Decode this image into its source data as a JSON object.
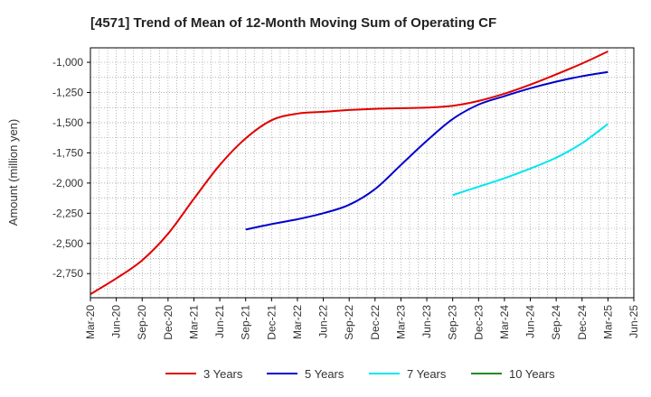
{
  "chart_data": {
    "type": "line",
    "title": "[4571]  Trend of Mean of 12-Month Moving Sum of Operating CF",
    "xlabel": "",
    "ylabel": "Amount (million yen)",
    "ylim": [
      -2950,
      -880
    ],
    "yticks": [
      -1000,
      -1250,
      -1500,
      -1750,
      -2000,
      -2250,
      -2500,
      -2750
    ],
    "ytick_labels": [
      "-1,000",
      "-1,250",
      "-1,500",
      "-1,750",
      "-2,000",
      "-2,250",
      "-2,500",
      "-2,750"
    ],
    "x_categories": [
      "Mar-20",
      "Jun-20",
      "Sep-20",
      "Dec-20",
      "Mar-21",
      "Jun-21",
      "Sep-21",
      "Dec-21",
      "Mar-22",
      "Jun-22",
      "Sep-22",
      "Dec-22",
      "Mar-23",
      "Jun-23",
      "Sep-23",
      "Dec-23",
      "Mar-24",
      "Jun-24",
      "Sep-24",
      "Dec-24",
      "Mar-25",
      "Jun-25"
    ],
    "grid": true,
    "legend_position": "bottom",
    "series": [
      {
        "name": "3 Years",
        "color": "#e00000",
        "values": [
          -2920,
          -2790,
          -2640,
          -2420,
          -2130,
          -1850,
          -1630,
          -1480,
          -1425,
          -1410,
          -1395,
          -1385,
          -1380,
          -1375,
          -1360,
          -1320,
          -1260,
          -1185,
          -1100,
          -1010,
          -910,
          null
        ]
      },
      {
        "name": "5 Years",
        "color": "#0000cc",
        "values": [
          null,
          null,
          null,
          null,
          null,
          null,
          -2385,
          -2340,
          -2300,
          -2250,
          -2180,
          -2050,
          -1850,
          -1650,
          -1470,
          -1350,
          -1280,
          -1215,
          -1160,
          -1115,
          -1080,
          null
        ]
      },
      {
        "name": "7 Years",
        "color": "#00e5ee",
        "values": [
          null,
          null,
          null,
          null,
          null,
          null,
          null,
          null,
          null,
          null,
          null,
          null,
          null,
          null,
          -2100,
          -2030,
          -1960,
          -1880,
          -1790,
          -1670,
          -1510,
          null
        ]
      },
      {
        "name": "10 Years",
        "color": "#228B22",
        "values": [
          null,
          null,
          null,
          null,
          null,
          null,
          null,
          null,
          null,
          null,
          null,
          null,
          null,
          null,
          null,
          null,
          null,
          null,
          null,
          null,
          null,
          null
        ]
      }
    ]
  }
}
